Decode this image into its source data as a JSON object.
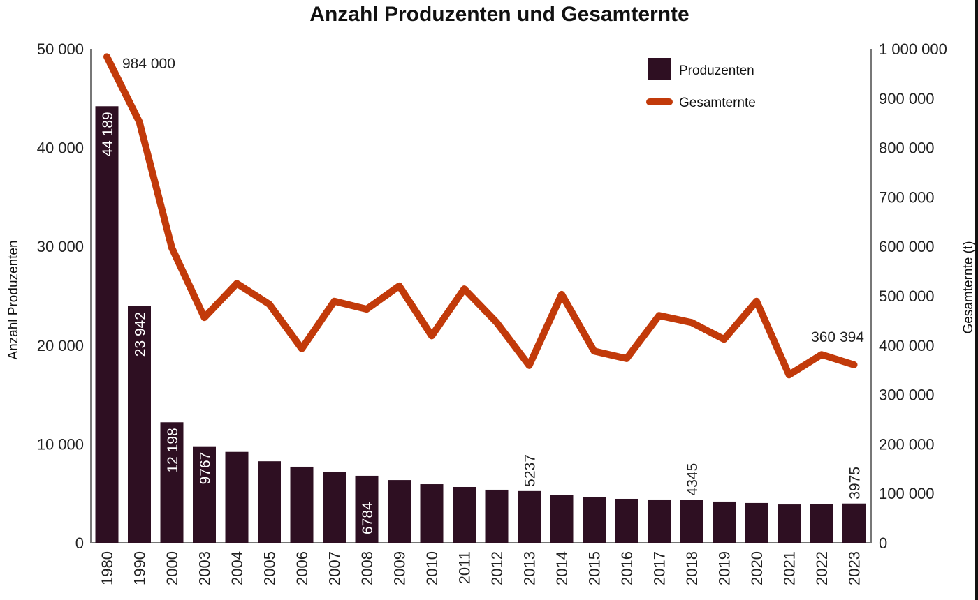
{
  "chart_data": {
    "type": "bar+line",
    "title": "Anzahl Produzenten und Gesamternte",
    "categories": [
      "1980",
      "1990",
      "2000",
      "2003",
      "2004",
      "2005",
      "2006",
      "2007",
      "2008",
      "2009",
      "2010",
      "2011",
      "2012",
      "2013",
      "2014",
      "2015",
      "2016",
      "2017",
      "2018",
      "2019",
      "2020",
      "2021",
      "2022",
      "2023"
    ],
    "y_left": {
      "label": "Anzahl Produzenten",
      "range": [
        0,
        50000
      ],
      "ticks": [
        "0",
        "10 000",
        "20 000",
        "30 000",
        "40 000",
        "50 000"
      ],
      "tick_values": [
        0,
        10000,
        20000,
        30000,
        40000,
        50000
      ]
    },
    "y_right": {
      "label": "Gesamternte (t)",
      "range": [
        0,
        1000000
      ],
      "ticks": [
        "0",
        "100 000",
        "200 000",
        "300 000",
        "400 000",
        "500 000",
        "600 000",
        "700 000",
        "800 000",
        "900 000",
        "1 000 000"
      ],
      "tick_values": [
        0,
        100000,
        200000,
        300000,
        400000,
        500000,
        600000,
        700000,
        800000,
        900000,
        1000000
      ]
    },
    "grid": false,
    "legend": {
      "placement": "top-right"
    },
    "series": [
      {
        "name": "Produzenten",
        "type": "bar",
        "axis": "left",
        "color": "#2e0f22",
        "values": [
          44189,
          23942,
          12198,
          9767,
          9200,
          8250,
          7700,
          7200,
          6784,
          6350,
          5930,
          5650,
          5370,
          5237,
          4870,
          4590,
          4450,
          4380,
          4345,
          4170,
          4030,
          3880,
          3900,
          3975
        ],
        "labels": {
          "0": "44 189",
          "1": "23 942",
          "2": "12 198",
          "3": "9767",
          "8": "6784",
          "13": "5237",
          "18": "4345",
          "23": "3975"
        }
      },
      {
        "name": "Gesamternte",
        "type": "line",
        "axis": "right",
        "color": "#c23a0a",
        "values": [
          984000,
          852000,
          597000,
          456000,
          525000,
          483000,
          393000,
          489000,
          473000,
          520000,
          419000,
          514000,
          446000,
          359000,
          503000,
          388000,
          373000,
          460000,
          446000,
          412000,
          489000,
          340000,
          381000,
          360394
        ],
        "labels": {
          "0": "984 000",
          "23": "360 394"
        }
      }
    ]
  }
}
